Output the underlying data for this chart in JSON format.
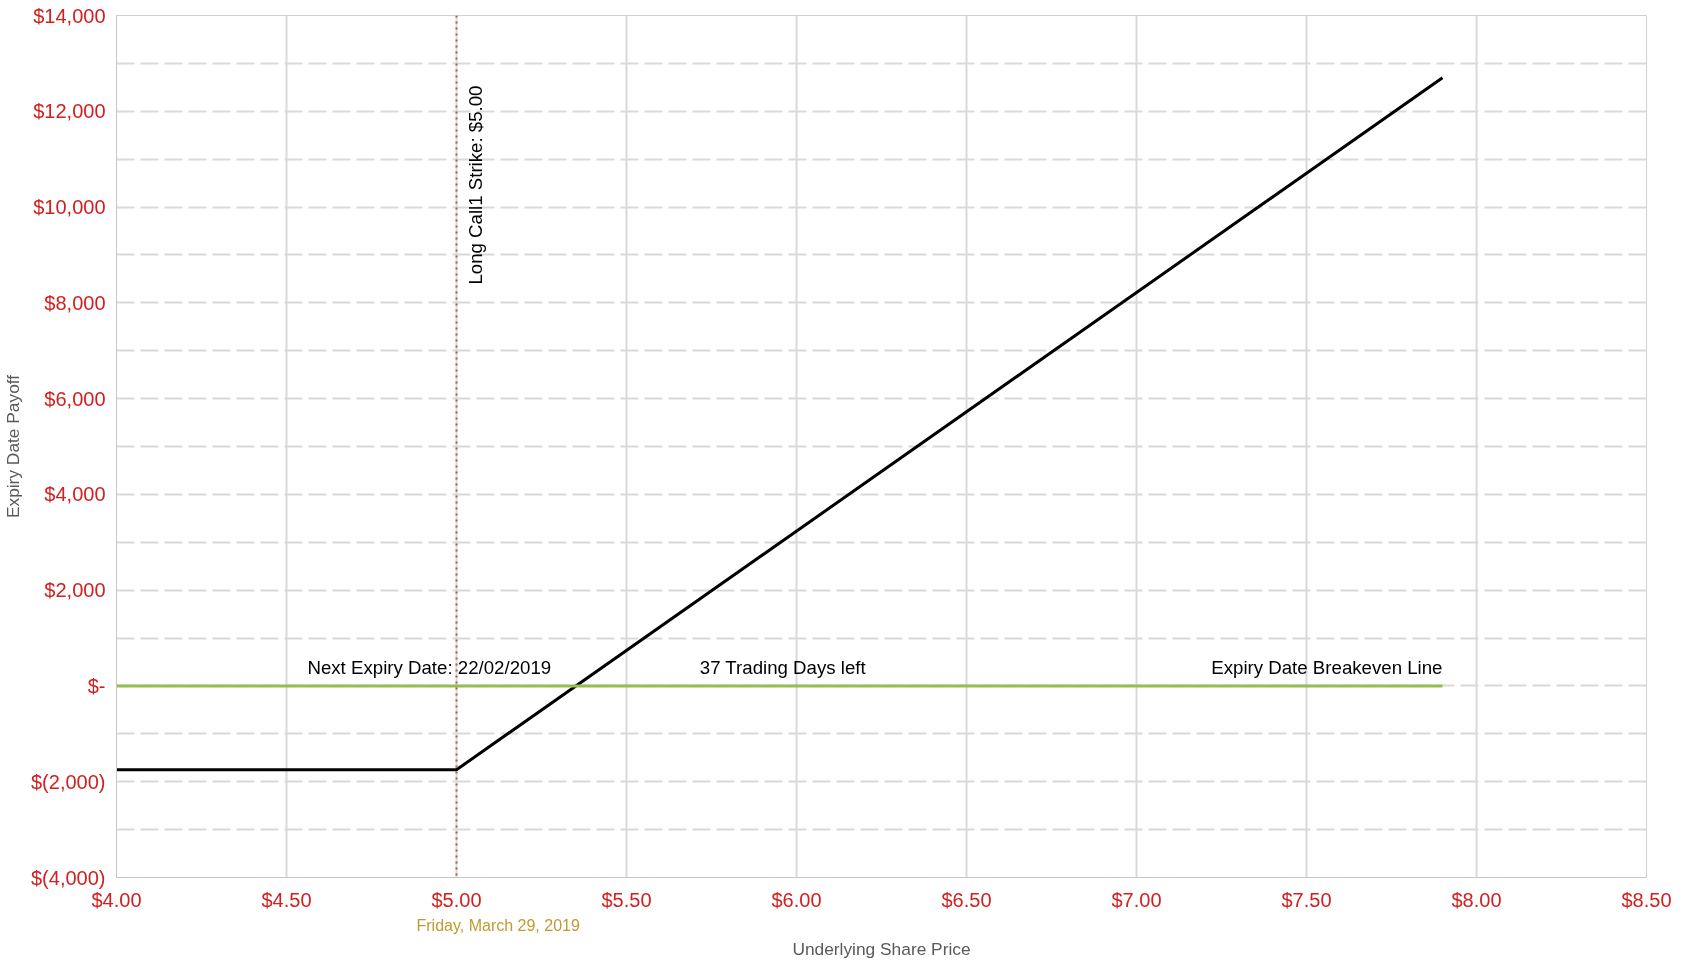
{
  "chart_data": {
    "type": "line",
    "xlabel": "Underlying Share Price",
    "ylabel": "Expiry Date Payoff",
    "series": [
      {
        "color": "#000000",
        "x": [
          4.0,
          5.0,
          7.9
        ],
        "values": [
          -1750,
          -1750,
          12700
        ]
      },
      {
        "name": "Expiry Date Breakeven Line",
        "color": "#92c050",
        "x": [
          4.0,
          7.9
        ],
        "values": [
          0,
          0
        ]
      }
    ],
    "xlim": [
      4.0,
      8.5
    ],
    "xticks": [
      {
        "value": 4.0,
        "label": "$4.00"
      },
      {
        "value": 4.5,
        "label": "$4.50"
      },
      {
        "value": 5.0,
        "label": "$5.00"
      },
      {
        "value": 5.5,
        "label": "$5.50"
      },
      {
        "value": 6.0,
        "label": "$6.00"
      },
      {
        "value": 6.5,
        "label": "$6.50"
      },
      {
        "value": 7.0,
        "label": "$7.00"
      },
      {
        "value": 7.5,
        "label": "$7.50"
      },
      {
        "value": 8.0,
        "label": "$8.00"
      },
      {
        "value": 8.5,
        "label": "$8.50"
      }
    ],
    "ylim": [
      -4000,
      14000
    ],
    "yticks": [
      {
        "value": -4000,
        "label": "$(4,000)"
      },
      {
        "value": -2000,
        "label": "$(2,000)"
      },
      {
        "value": 0,
        "label": "$-"
      },
      {
        "value": 2000,
        "label": "$2,000"
      },
      {
        "value": 4000,
        "label": "$4,000"
      },
      {
        "value": 6000,
        "label": "$6,000"
      },
      {
        "value": 8000,
        "label": "$8,000"
      },
      {
        "value": 10000,
        "label": "$10,000"
      },
      {
        "value": 12000,
        "label": "$12,000"
      },
      {
        "value": 14000,
        "label": "$14,000"
      }
    ],
    "ref_lines": [
      {
        "axis": "x",
        "value": 5.0,
        "label": "Long Call1 Strike: $5.00",
        "color": "#c0504d",
        "line_style": "dotted"
      }
    ],
    "annotations": [
      {
        "text": "Next Expiry Date: 22/02/2019",
        "x": 4.92,
        "y": 0
      },
      {
        "text": "37 Trading Days left",
        "x": 5.96,
        "y": 0
      },
      "Friday, March 29, 2019"
    ],
    "grid": true,
    "marker": "none",
    "line_style": "solid"
  }
}
